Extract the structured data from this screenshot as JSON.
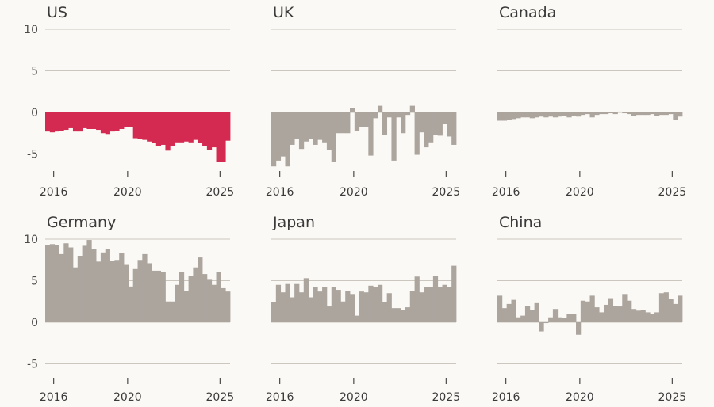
{
  "chart_data": [
    {
      "type": "bar",
      "title": "US",
      "color": "#d42a52",
      "frequency": "quarterly",
      "start": "2015Q3",
      "ylim": [
        -5,
        10
      ],
      "yticks": [
        10,
        5,
        0,
        -5
      ],
      "xticks": [
        "2016",
        "2020",
        "2025"
      ],
      "values": [
        -2.3,
        -2.4,
        -2.3,
        -2.2,
        -2.1,
        -1.9,
        -2.3,
        -2.3,
        -1.9,
        -2.0,
        -2.0,
        -2.1,
        -2.5,
        -2.6,
        -2.3,
        -2.2,
        -2.0,
        -1.8,
        -1.8,
        -3.1,
        -3.2,
        -3.3,
        -3.5,
        -3.7,
        -4.0,
        -3.9,
        -4.6,
        -4.0,
        -3.6,
        -3.6,
        -3.5,
        -3.6,
        -3.3,
        -3.7,
        -4.0,
        -4.5,
        -4.2,
        -6.0,
        -6.0,
        -3.4
      ]
    },
    {
      "type": "bar",
      "title": "UK",
      "color": "#aca59e",
      "frequency": "quarterly",
      "start": "2015Q3",
      "ylim": [
        -5,
        10
      ],
      "yticks": [
        10,
        5,
        0,
        -5
      ],
      "xticks": [
        "2016",
        "2020",
        "2025"
      ],
      "values": [
        -6.5,
        -5.8,
        -5.3,
        -6.5,
        -3.9,
        -3.2,
        -4.4,
        -3.5,
        -3.2,
        -3.9,
        -3.3,
        -3.6,
        -4.5,
        -6.0,
        -2.5,
        -2.5,
        -2.5,
        0.5,
        -2.2,
        -1.8,
        -1.8,
        -5.2,
        -0.7,
        0.8,
        -2.7,
        -0.6,
        -5.8,
        -0.6,
        -2.5,
        -0.3,
        0.8,
        -5.1,
        -2.4,
        -4.2,
        -3.6,
        -2.7,
        -2.8,
        -1.4,
        -2.9,
        -3.9
      ]
    },
    {
      "type": "bar",
      "title": "Canada",
      "color": "#aca59e",
      "frequency": "quarterly",
      "start": "2015Q3",
      "ylim": [
        -5,
        10
      ],
      "yticks": [
        10,
        5,
        0,
        -5
      ],
      "xticks": [
        "2016",
        "2020",
        "2025"
      ],
      "values": [
        -1.0,
        -1.0,
        -0.9,
        -0.8,
        -0.7,
        -0.6,
        -0.6,
        -0.7,
        -0.6,
        -0.5,
        -0.6,
        -0.5,
        -0.6,
        -0.5,
        -0.4,
        -0.6,
        -0.4,
        -0.5,
        -0.3,
        -0.2,
        -0.6,
        -0.3,
        -0.2,
        -0.2,
        -0.1,
        -0.2,
        0.1,
        -0.1,
        -0.2,
        -0.4,
        -0.3,
        -0.3,
        -0.3,
        -0.2,
        -0.4,
        -0.3,
        -0.3,
        -0.2,
        -0.9,
        -0.5
      ]
    },
    {
      "type": "bar",
      "title": "Germany",
      "color": "#aca59e",
      "frequency": "quarterly",
      "start": "2015Q3",
      "ylim": [
        -5,
        10
      ],
      "yticks": [
        10,
        5,
        0,
        -5
      ],
      "xticks": [
        "2016",
        "2020",
        "2025"
      ],
      "values": [
        9.3,
        9.4,
        9.3,
        8.2,
        9.5,
        9.0,
        6.6,
        8.0,
        9.2,
        9.9,
        8.8,
        7.3,
        8.4,
        8.8,
        7.4,
        7.5,
        8.3,
        6.9,
        4.3,
        6.4,
        7.5,
        8.2,
        7.1,
        6.2,
        6.2,
        6.0,
        2.5,
        2.5,
        4.5,
        6.0,
        3.8,
        5.6,
        6.6,
        7.8,
        5.8,
        5.2,
        4.5,
        6.0,
        4.1,
        3.7
      ]
    },
    {
      "type": "bar",
      "title": "Japan",
      "color": "#aca59e",
      "frequency": "quarterly",
      "start": "2015Q3",
      "ylim": [
        -5,
        10
      ],
      "yticks": [
        10,
        5,
        0,
        -5
      ],
      "xticks": [
        "2016",
        "2020",
        "2025"
      ],
      "values": [
        2.4,
        4.5,
        3.6,
        4.6,
        3.0,
        4.6,
        3.6,
        5.3,
        3.0,
        4.2,
        3.7,
        4.2,
        1.9,
        4.2,
        3.9,
        2.5,
        3.8,
        3.4,
        0.8,
        3.7,
        3.6,
        4.4,
        4.2,
        4.5,
        2.4,
        3.5,
        1.7,
        1.7,
        1.5,
        1.8,
        3.8,
        5.5,
        3.6,
        4.2,
        4.2,
        5.6,
        4.2,
        4.5,
        4.2,
        6.8
      ]
    },
    {
      "type": "bar",
      "title": "China",
      "color": "#aca59e",
      "frequency": "quarterly",
      "start": "2015Q3",
      "ylim": [
        -5,
        10
      ],
      "yticks": [
        10,
        5,
        0,
        -5
      ],
      "xticks": [
        "2016",
        "2020",
        "2025"
      ],
      "values": [
        3.2,
        1.7,
        2.2,
        2.7,
        0.6,
        0.8,
        2.0,
        1.5,
        2.3,
        -1.1,
        -0.1,
        0.6,
        1.6,
        0.6,
        0.5,
        1.0,
        1.0,
        -1.5,
        2.6,
        2.5,
        3.2,
        1.8,
        1.2,
        2.1,
        2.9,
        2.0,
        1.9,
        3.4,
        2.6,
        1.6,
        1.4,
        1.5,
        1.2,
        1.0,
        1.2,
        3.5,
        3.6,
        2.8,
        2.2,
        3.2
      ]
    }
  ]
}
